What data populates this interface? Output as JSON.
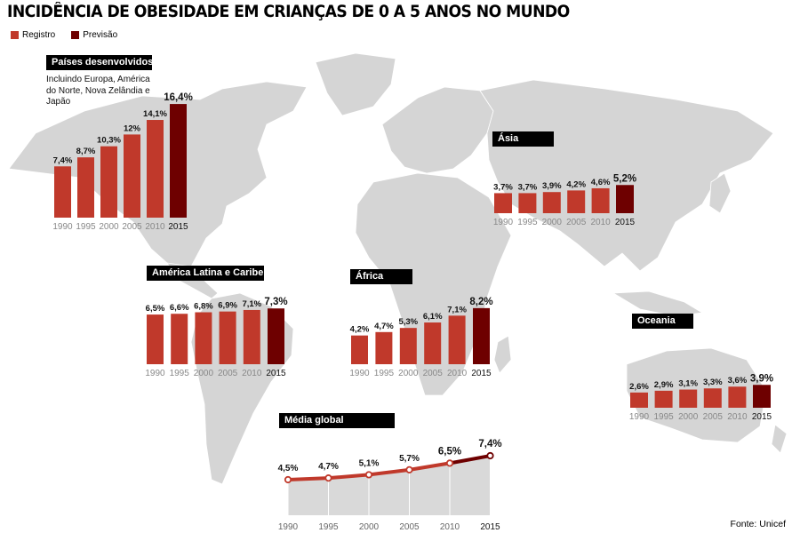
{
  "title": "INCIDÊNCIA DE OBESIDADE EM CRIANÇAS DE 0 A 5 ANOS NO MUNDO",
  "legend": {
    "registro": "Registro",
    "previsao": "Previsão"
  },
  "colors": {
    "registro": "#c0392b",
    "previsao": "#6e0000",
    "map": "#d5d5d5",
    "area": "#d9d9d9"
  },
  "source": "Fonte: Unicef",
  "chart_data": [
    {
      "type": "bar",
      "title": "Países desenvolvidos",
      "note": "Incluindo Europa, América do Norte, Nova Zelândia e Japão",
      "categories": [
        "1990",
        "1995",
        "2000",
        "2005",
        "2010",
        "2015"
      ],
      "values": [
        7.4,
        8.7,
        10.3,
        12,
        14.1,
        16.4
      ],
      "labels": [
        "7,4%",
        "8,7%",
        "10,3%",
        "12%",
        "14,1%",
        "16,4%"
      ]
    },
    {
      "type": "bar",
      "title": "Ásia",
      "categories": [
        "1990",
        "1995",
        "2000",
        "2005",
        "2010",
        "2015"
      ],
      "values": [
        3.7,
        3.7,
        3.9,
        4.2,
        4.6,
        5.2
      ],
      "labels": [
        "3,7%",
        "3,7%",
        "3,9%",
        "4,2%",
        "4,6%",
        "5,2%"
      ]
    },
    {
      "type": "bar",
      "title": "América Latina e Caribe",
      "categories": [
        "1990",
        "1995",
        "2000",
        "2005",
        "2010",
        "2015"
      ],
      "values": [
        6.5,
        6.6,
        6.8,
        6.9,
        7.1,
        7.3
      ],
      "labels": [
        "6,5%",
        "6,6%",
        "6,8%",
        "6,9%",
        "7,1%",
        "7,3%"
      ]
    },
    {
      "type": "bar",
      "title": "África",
      "categories": [
        "1990",
        "1995",
        "2000",
        "2005",
        "2010",
        "2015"
      ],
      "values": [
        4.2,
        4.7,
        5.3,
        6.1,
        7.1,
        8.2
      ],
      "labels": [
        "4,2%",
        "4,7%",
        "5,3%",
        "6,1%",
        "7,1%",
        "8,2%"
      ]
    },
    {
      "type": "bar",
      "title": "Oceania",
      "categories": [
        "1990",
        "1995",
        "2000",
        "2005",
        "2010",
        "2015"
      ],
      "values": [
        2.6,
        2.9,
        3.1,
        3.3,
        3.6,
        3.9
      ],
      "labels": [
        "2,6%",
        "2,9%",
        "3,1%",
        "3,3%",
        "3,6%",
        "3,9%"
      ]
    },
    {
      "type": "area",
      "title": "Média global",
      "categories": [
        "1990",
        "1995",
        "2000",
        "2005",
        "2010",
        "2015"
      ],
      "values": [
        4.5,
        4.7,
        5.1,
        5.7,
        6.5,
        7.4
      ],
      "labels": [
        "4,5%",
        "4,7%",
        "5,1%",
        "5,7%",
        "6,5%",
        "7,4%"
      ]
    }
  ]
}
